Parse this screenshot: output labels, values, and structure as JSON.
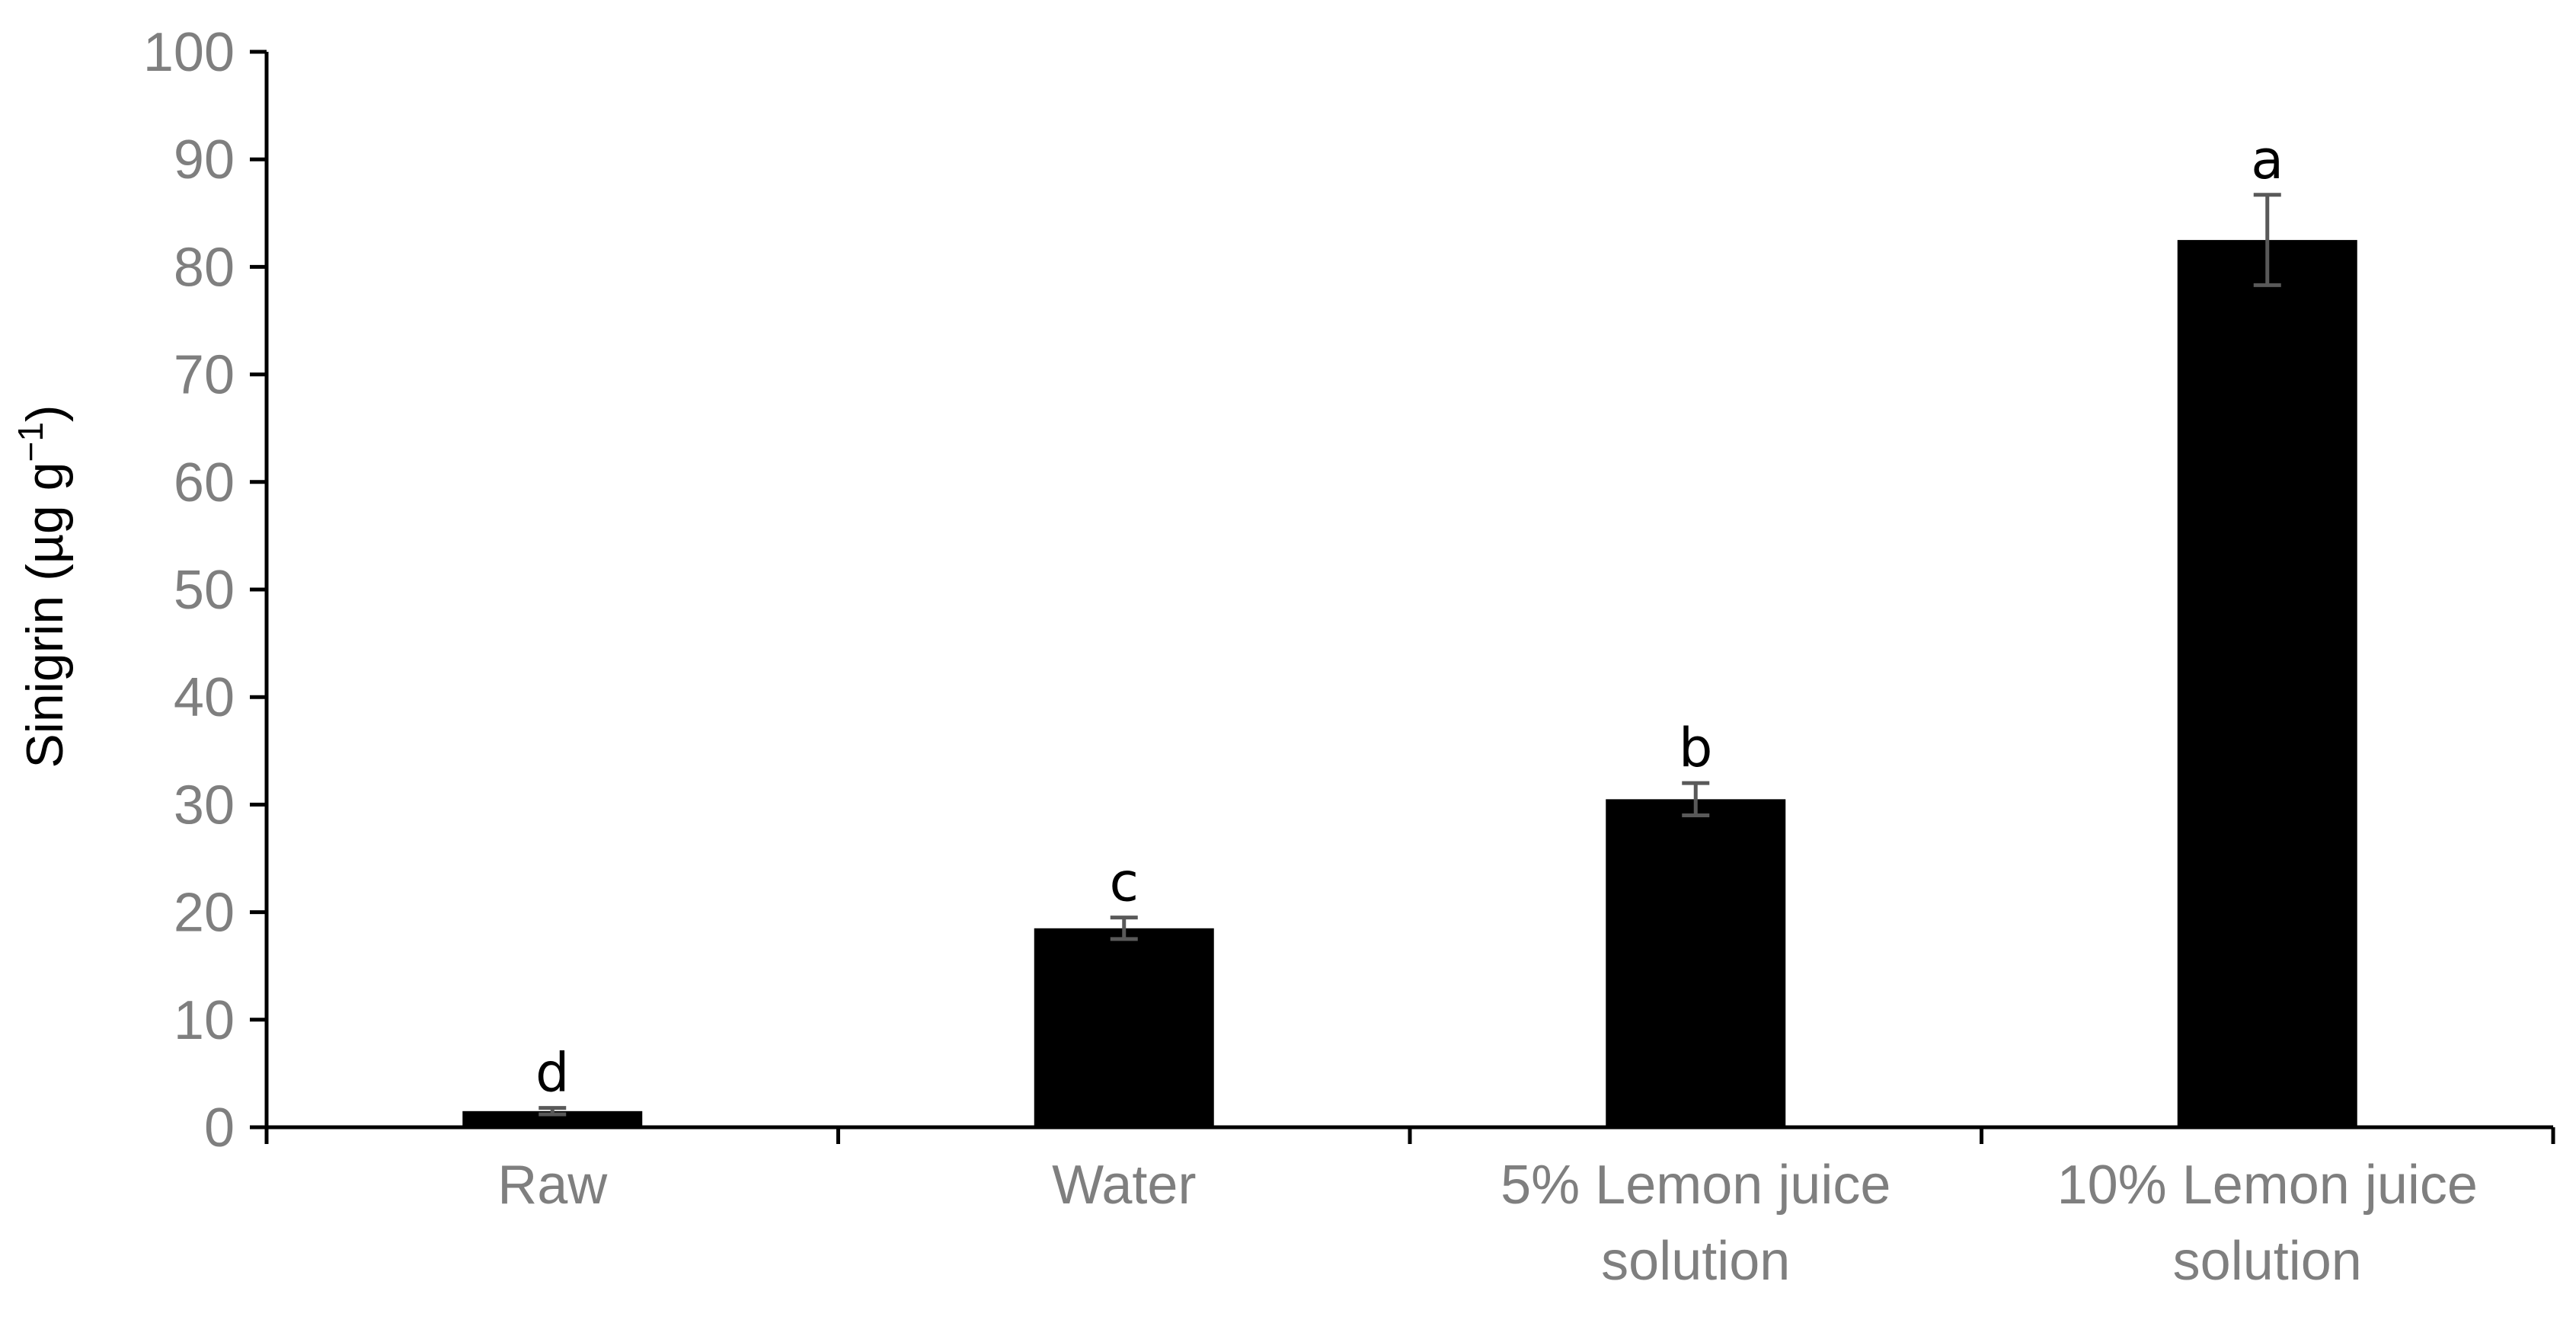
{
  "chart_data": {
    "type": "bar",
    "categories": [
      [
        "Raw"
      ],
      [
        "Water"
      ],
      [
        "5% Lemon juice",
        "solution"
      ],
      [
        "10% Lemon juice",
        "solution"
      ]
    ],
    "values": [
      1.5,
      18.5,
      30.5,
      82.5
    ],
    "errors": [
      0.3,
      1.0,
      1.5,
      4.2
    ],
    "significance_letters": [
      "d",
      "c",
      "b",
      "a"
    ],
    "ylabel": "Sinigrin (µg g",
    "ylabel_superscript": "−1",
    "ylabel_suffix": ")",
    "ylim": [
      0,
      100
    ],
    "yticks": [
      0,
      10,
      20,
      30,
      40,
      50,
      60,
      70,
      80,
      90,
      100
    ],
    "grid": false,
    "legend": "none",
    "colors": {
      "bar": "#000000",
      "error_bar": "#595959",
      "axis": "#000000",
      "tick_label": "#7f7f7f"
    }
  }
}
